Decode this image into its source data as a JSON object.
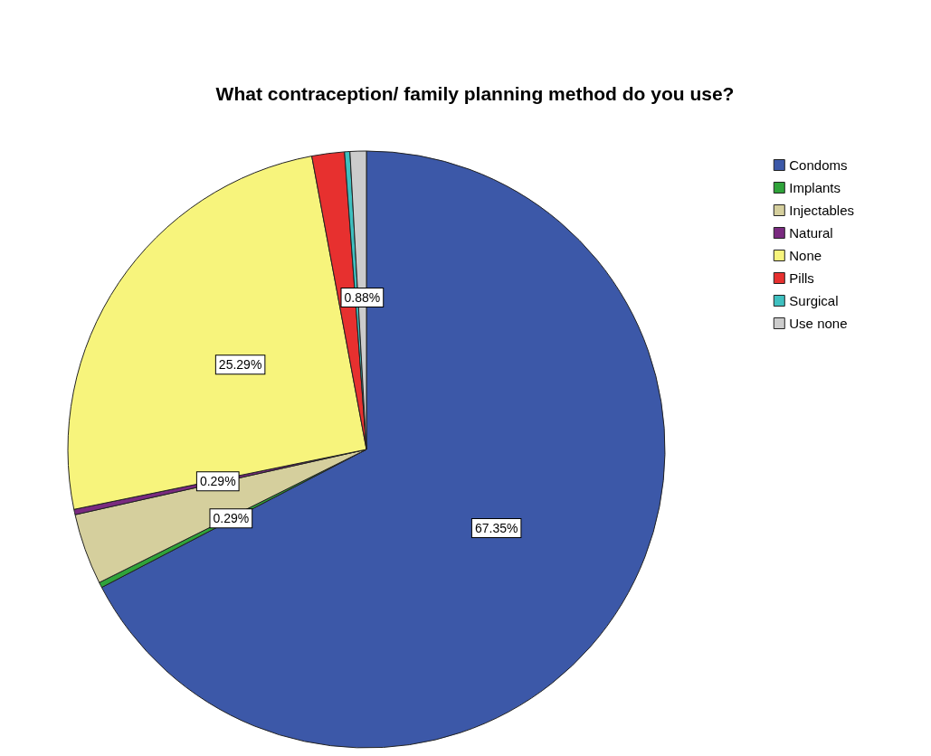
{
  "chart_data": {
    "type": "pie",
    "title": "What contraception/ family planning method do you use?",
    "categories": [
      "Condoms",
      "Implants",
      "Injectables",
      "Natural",
      "None",
      "Pills",
      "Surgical",
      "Use none"
    ],
    "values": [
      67.35,
      0.29,
      3.85,
      0.29,
      25.29,
      1.76,
      0.29,
      0.88
    ],
    "value_labels": [
      "67.35%",
      "0.29%",
      null,
      "0.29%",
      "25.29%",
      null,
      null,
      "0.88%"
    ],
    "colors": [
      "#3c58a8",
      "#2fa33a",
      "#d5cf9d",
      "#7a2a80",
      "#f7f47c",
      "#e7302f",
      "#3fc0c0",
      "#cccccc"
    ],
    "legend": "top right"
  }
}
